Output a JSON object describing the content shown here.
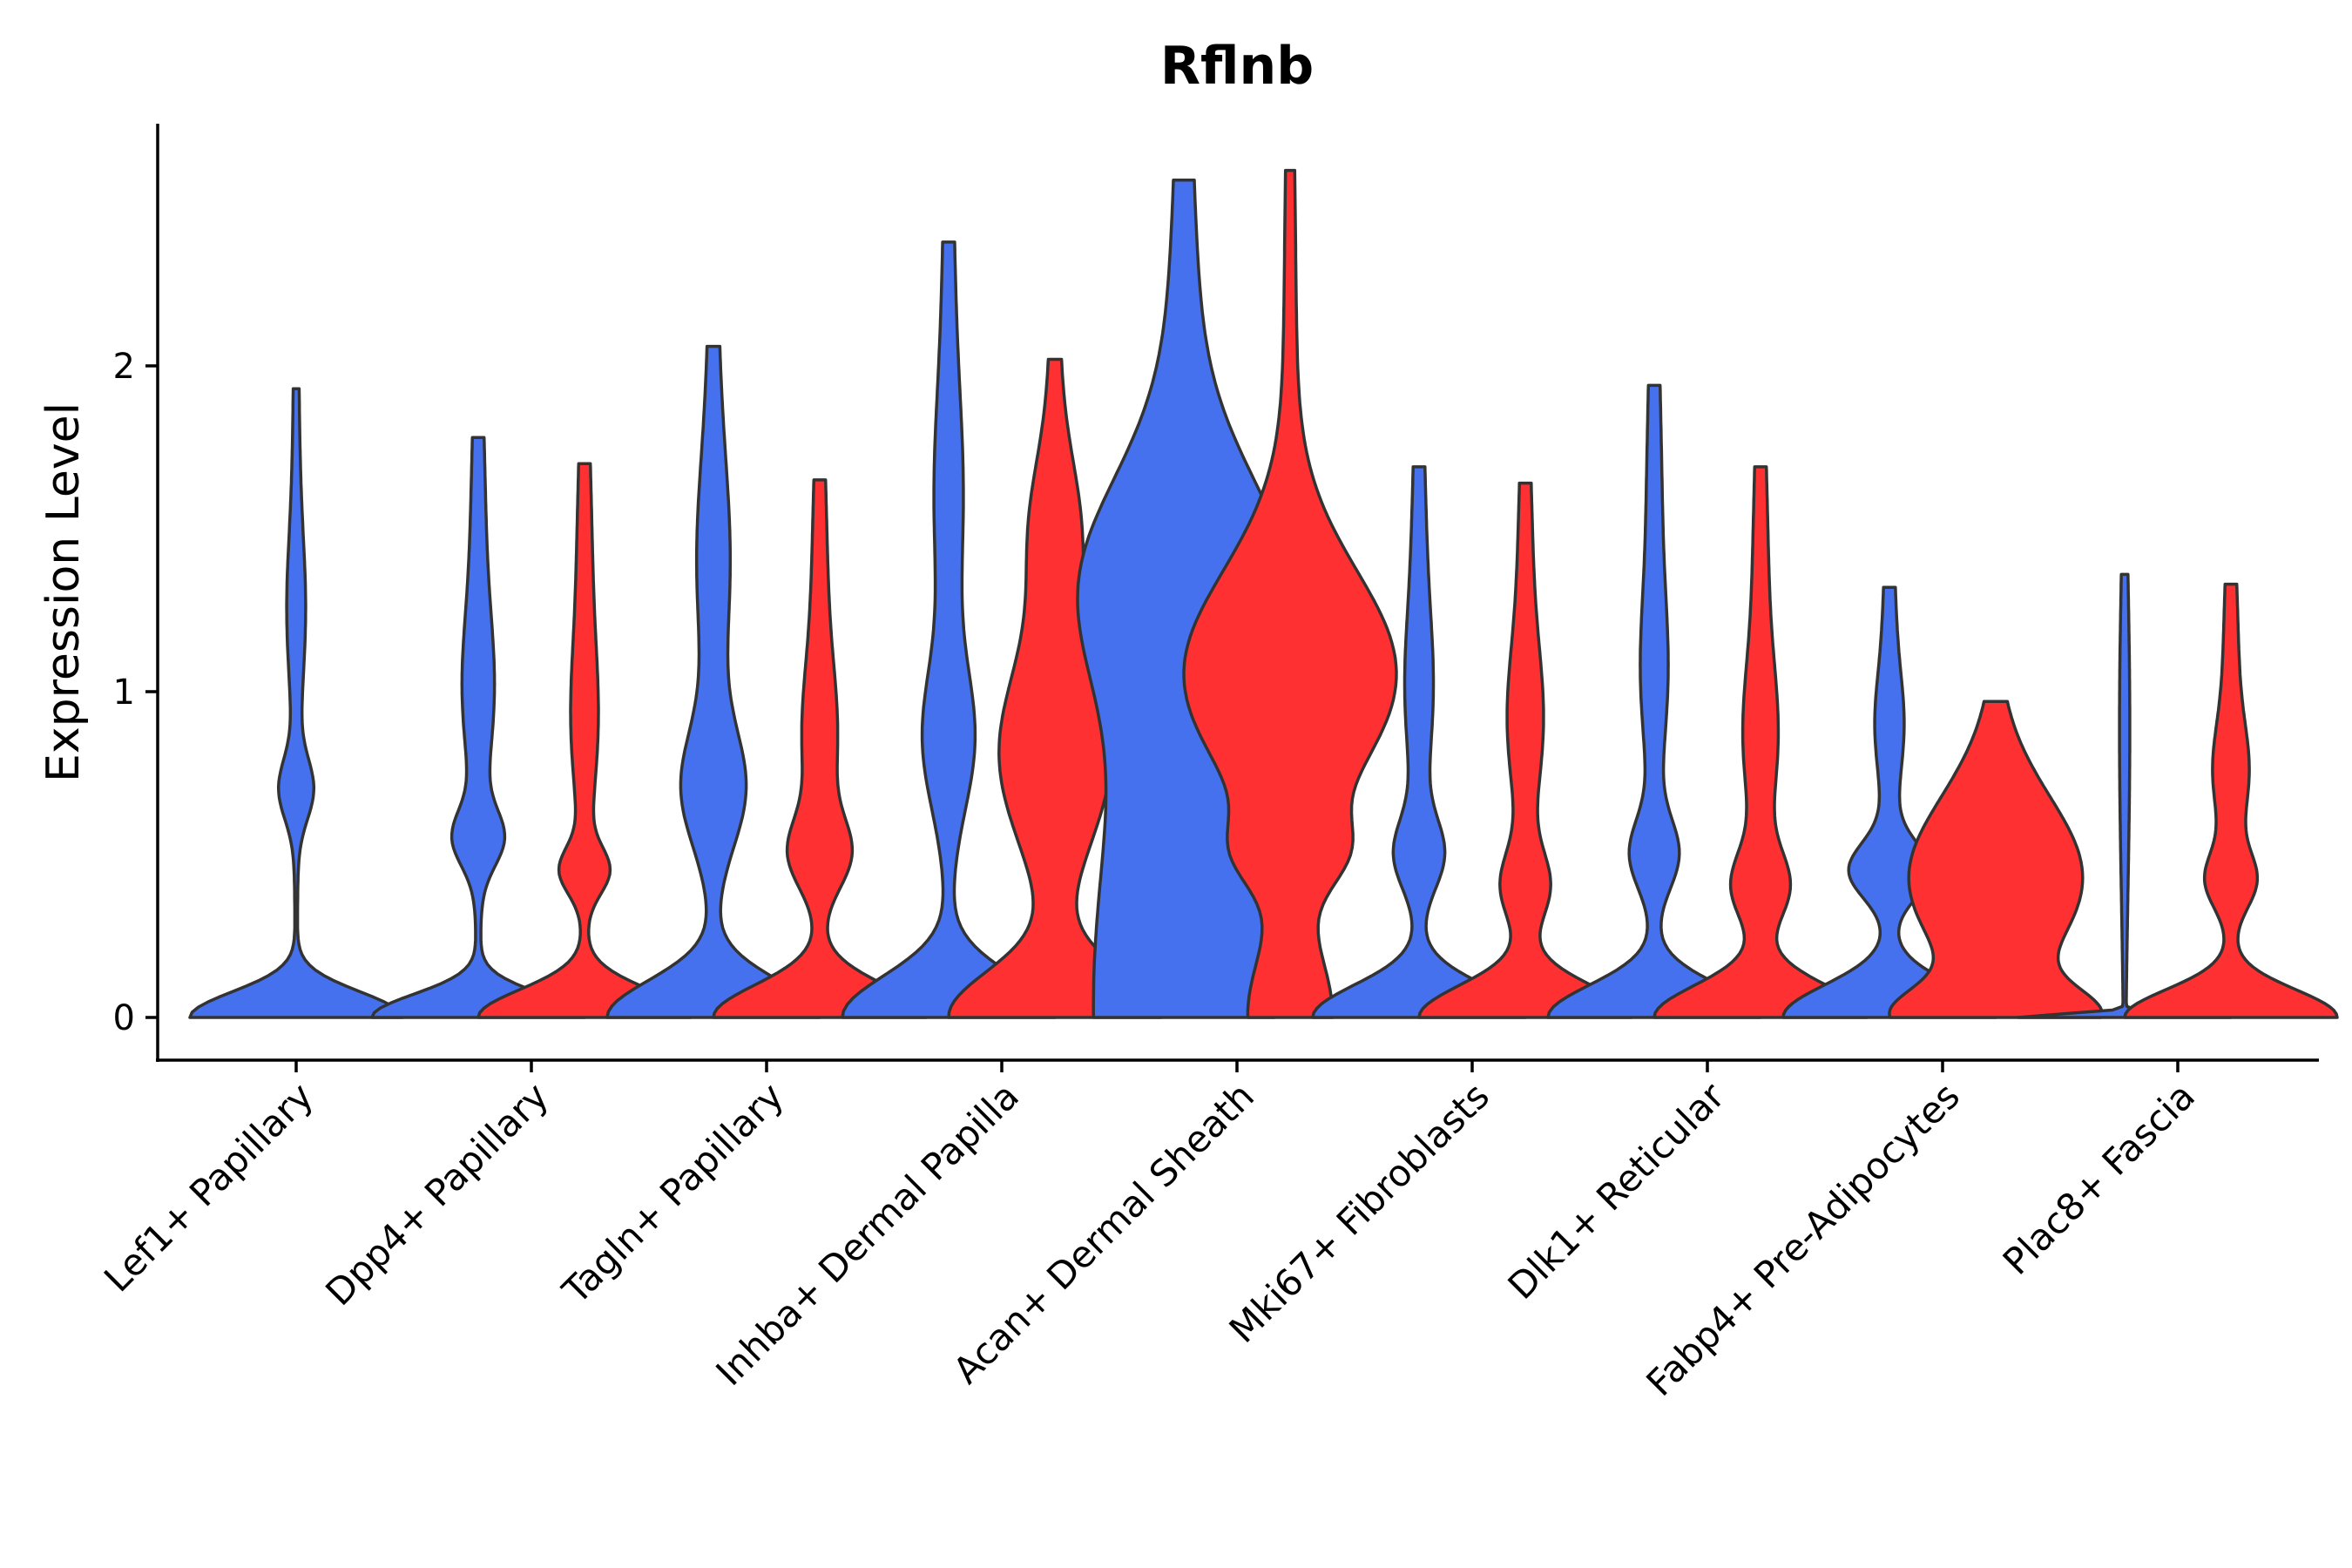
{
  "chart_data": {
    "type": "violin",
    "title": "Rflnb",
    "xlabel": "",
    "ylabel": "Expression Level",
    "ylim": [
      -0.13,
      2.75
    ],
    "yticks": [
      0,
      1,
      2
    ],
    "grid": false,
    "legend": "none",
    "categories": [
      "Lef1+ Papillary",
      "Dpp4+ Papillary",
      "Tagln+ Papillary",
      "Inhba+ Dermal Papilla",
      "Acan+ Dermal Sheath",
      "Mki67+ Fibroblasts",
      "Dlk1+ Reticular",
      "Fabp4+ Pre-Adipocytes",
      "Plac8+ Fascia"
    ],
    "series": [
      {
        "color": "#4571ee",
        "max": [
          1.93,
          1.78,
          2.06,
          2.38,
          2.57,
          1.69,
          1.94,
          1.32,
          1.36
        ]
      },
      {
        "color": "#fe3031",
        "max": [
          null,
          1.7,
          1.65,
          2.02,
          2.6,
          1.64,
          1.69,
          0.97,
          1.33
        ]
      }
    ]
  }
}
